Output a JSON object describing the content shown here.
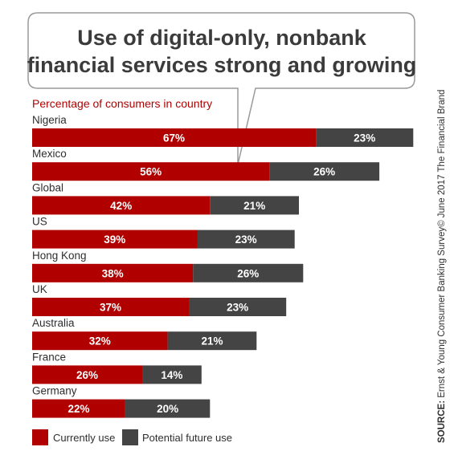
{
  "chart_data": {
    "type": "bar",
    "orientation": "horizontal",
    "stacked": true,
    "title_lines": [
      "Use of digital-only, nonbank",
      "financial services strong and growing"
    ],
    "subtitle": "Percentage of consumers in country",
    "categories": [
      "Nigeria",
      "Mexico",
      "Global",
      "US",
      "Hong Kong",
      "UK",
      "Australia",
      "France",
      "Germany"
    ],
    "series": [
      {
        "name": "Currently use",
        "values": [
          67,
          56,
          42,
          39,
          38,
          37,
          32,
          26,
          22
        ],
        "labels": [
          "67%",
          "56%",
          "42%",
          "39%",
          "38%",
          "37%",
          "32%",
          "26%",
          "22%"
        ],
        "color": "#b00000"
      },
      {
        "name": "Potential future use",
        "values": [
          23,
          26,
          21,
          23,
          26,
          23,
          21,
          14,
          20
        ],
        "labels": [
          "23%",
          "26%",
          "21%",
          "23%",
          "26%",
          "23%",
          "21%",
          "14%",
          "20%"
        ],
        "color": "#444444"
      }
    ],
    "xlim": [
      0,
      100
    ],
    "grid": false,
    "legend": "bottom-left"
  },
  "source": {
    "label": "SOURCE:",
    "text": " Ernst & Young  Consumer Banking Survey© June 2017 The Financial Brand"
  },
  "colors": {
    "callout_border": "#9a9a9a",
    "text": "#2e2e2e",
    "accent": "#b00000"
  }
}
